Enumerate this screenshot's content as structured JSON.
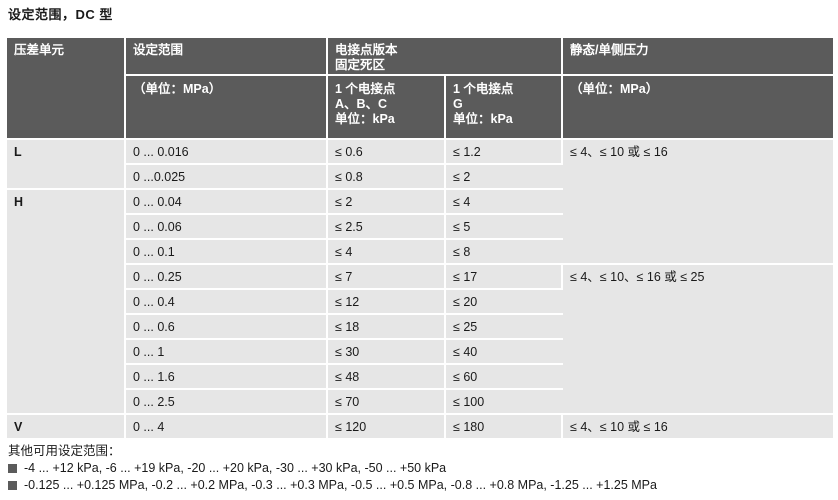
{
  "title": "设定范围，DC 型",
  "table": {
    "header": {
      "col1": "压差单元",
      "col2": "设定范围",
      "col3_line1": "电接点版本",
      "col3_line2": "固定死区",
      "col5": "静态/单侧压力",
      "col2_unit": "（单位：MPa）",
      "col3_sub_line1": "1 个电接点",
      "col3_sub_line2": "A、B、C",
      "col3_sub_line3": "单位：kPa",
      "col4_sub_line1": "1 个电接点",
      "col4_sub_line2": "G",
      "col4_sub_line3": "单位：kPa",
      "col5_unit": "（单位：MPa）"
    },
    "groups": [
      "L",
      "H",
      "V"
    ],
    "rows": [
      {
        "range": "0 ... 0.016",
        "abc": "≤ 0.6",
        "g": "≤ 1.2"
      },
      {
        "range": "0 ...0.025",
        "abc": "≤ 0.8",
        "g": "≤ 2"
      },
      {
        "range": "0 ... 0.04",
        "abc": "≤ 2",
        "g": "≤ 4"
      },
      {
        "range": "0 ... 0.06",
        "abc": "≤ 2.5",
        "g": "≤ 5"
      },
      {
        "range": "0 ... 0.1",
        "abc": "≤ 4",
        "g": "≤ 8"
      },
      {
        "range": "0 ... 0.25",
        "abc": "≤ 7",
        "g": "≤ 17"
      },
      {
        "range": "0 ... 0.4",
        "abc": "≤ 12",
        "g": "≤ 20"
      },
      {
        "range": "0 ... 0.6",
        "abc": "≤ 18",
        "g": "≤ 25"
      },
      {
        "range": "0 ... 1",
        "abc": "≤ 30",
        "g": "≤ 40"
      },
      {
        "range": "0 ... 1.6",
        "abc": "≤ 48",
        "g": "≤ 60"
      },
      {
        "range": "0 ... 2.5",
        "abc": "≤ 70",
        "g": "≤ 100"
      },
      {
        "range": "0 ... 4",
        "abc": "≤ 120",
        "g": "≤ 180"
      }
    ],
    "static": [
      "≤ 4、≤ 10 或 ≤ 16",
      "≤ 4、≤ 10、≤ 16 或 ≤ 25",
      "≤ 4、≤ 10 或 ≤ 16"
    ]
  },
  "notes": {
    "heading": "其他可用设定范围：",
    "items": [
      "-4 ... +12 kPa, -6 ... +19 kPa, -20 ... +20 kPa, -30 ... +30 kPa, -50 ... +50 kPa",
      "-0.125 ... +0.125 MPa, -0.2 ... +0.2 MPa, -0.3 ... +0.3 MPa, -0.5 ... +0.5 MPa, -0.8 ... +0.8 MPa, -1.25 ... +1.25 MPa"
    ]
  }
}
